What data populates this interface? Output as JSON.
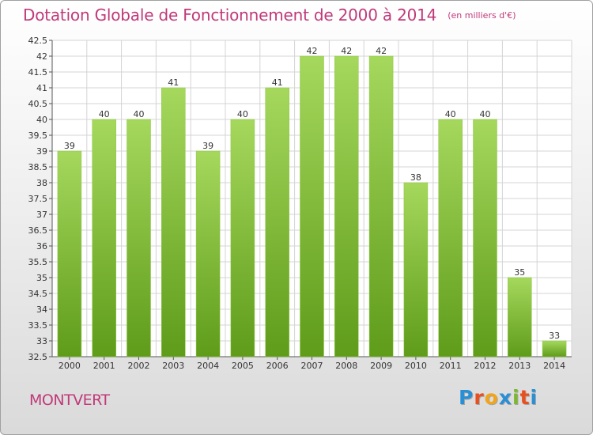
{
  "title": "Dotation Globale de Fonctionnement de 2000 à 2014",
  "unit": "(en milliers d'€)",
  "city": "MONTVERT",
  "logo": {
    "letters": [
      "P",
      "r",
      "o",
      "x",
      "i",
      "t",
      "i"
    ],
    "colors": [
      "#2a8fd4",
      "#e8501f",
      "#f2a51a",
      "#2a8fd4",
      "#7cb82f",
      "#e8501f",
      "#2a8fd4"
    ]
  },
  "colors": {
    "bar_light": "#a3d65a",
    "bar_dark": "#62a01c",
    "title": "#c0397a",
    "grid": "#d4d4d4"
  },
  "chart_data": {
    "type": "bar",
    "title": "Dotation Globale de Fonctionnement de 2000 à 2014",
    "unit": "(en milliers d'€)",
    "categories": [
      "2000",
      "2001",
      "2002",
      "2003",
      "2004",
      "2005",
      "2006",
      "2007",
      "2008",
      "2009",
      "2010",
      "2011",
      "2012",
      "2013",
      "2014"
    ],
    "values": [
      39,
      40,
      40,
      41,
      39,
      40,
      41,
      42,
      42,
      42,
      38,
      40,
      40,
      35,
      33
    ],
    "ylim": [
      32.5,
      42.5
    ],
    "yticks": [
      "32.5",
      "33",
      "33.5",
      "34",
      "34.5",
      "35",
      "35.5",
      "36",
      "36.5",
      "37",
      "37.5",
      "38",
      "38.5",
      "39",
      "39.5",
      "40",
      "40.5",
      "41",
      "41.5",
      "42",
      "42.5"
    ],
    "grid": true,
    "legend": "none"
  }
}
